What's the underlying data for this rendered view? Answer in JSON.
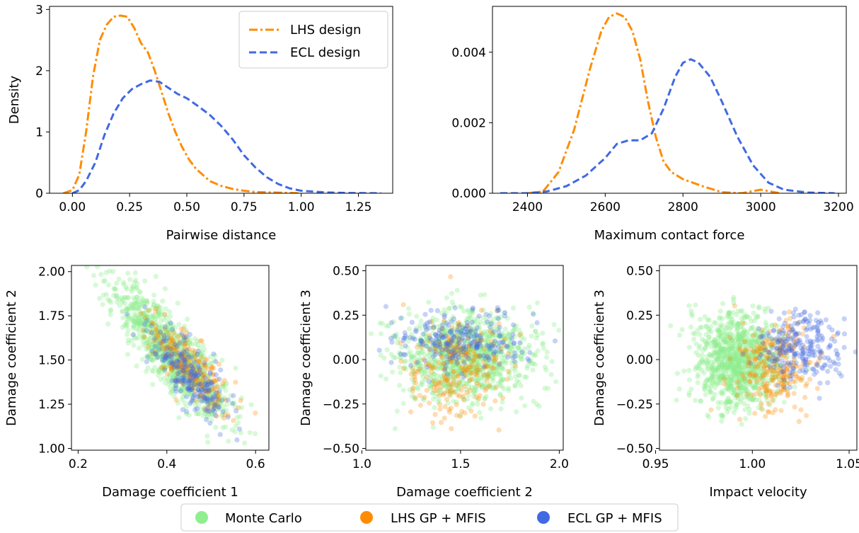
{
  "colors": {
    "lhs": "#ff8c00",
    "ecl": "#4169e1",
    "mc": "#90ee90"
  },
  "legend_bottom": {
    "items": [
      {
        "label": "Monte Carlo",
        "color": "#90ee90"
      },
      {
        "label": "LHS GP + MFIS",
        "color": "#ff8c00"
      },
      {
        "label": "ECL GP + MFIS",
        "color": "#4169e1"
      }
    ]
  },
  "chart_data": [
    {
      "type": "line",
      "title": "",
      "xlabel": "Pairwise distance",
      "ylabel": "Density",
      "xlim": [
        -0.1,
        1.4
      ],
      "ylim": [
        0,
        3.05
      ],
      "xticks": [
        0.0,
        0.25,
        0.5,
        0.75,
        1.0,
        1.25
      ],
      "xtick_labels": [
        "0.00",
        "0.25",
        "0.50",
        "0.75",
        "1.00",
        "1.25"
      ],
      "yticks": [
        0,
        1,
        2,
        3
      ],
      "ytick_labels": [
        "0",
        "1",
        "2",
        "3"
      ],
      "legend_position": "top-right",
      "series": [
        {
          "name": "LHS design",
          "style": "dashdot",
          "color": "#ff8c00",
          "x": [
            -0.04,
            0.0,
            0.03,
            0.06,
            0.09,
            0.12,
            0.15,
            0.18,
            0.21,
            0.24,
            0.27,
            0.3,
            0.33,
            0.36,
            0.39,
            0.42,
            0.45,
            0.48,
            0.51,
            0.54,
            0.57,
            0.6,
            0.65,
            0.7,
            0.75,
            0.8,
            0.9,
            1.0
          ],
          "y": [
            0.0,
            0.05,
            0.3,
            1.0,
            1.9,
            2.5,
            2.75,
            2.88,
            2.9,
            2.88,
            2.7,
            2.45,
            2.3,
            2.0,
            1.65,
            1.3,
            1.0,
            0.75,
            0.55,
            0.4,
            0.3,
            0.2,
            0.12,
            0.07,
            0.04,
            0.02,
            0.01,
            0.0
          ]
        },
        {
          "name": "ECL design",
          "style": "dashed",
          "color": "#4169e1",
          "x": [
            0.0,
            0.03,
            0.06,
            0.1,
            0.14,
            0.18,
            0.22,
            0.26,
            0.3,
            0.34,
            0.38,
            0.42,
            0.46,
            0.5,
            0.55,
            0.6,
            0.65,
            0.7,
            0.75,
            0.8,
            0.85,
            0.9,
            0.95,
            1.0,
            1.1,
            1.2,
            1.35
          ],
          "y": [
            0.0,
            0.05,
            0.2,
            0.5,
            0.95,
            1.3,
            1.55,
            1.7,
            1.78,
            1.84,
            1.82,
            1.72,
            1.62,
            1.55,
            1.42,
            1.28,
            1.1,
            0.88,
            0.62,
            0.42,
            0.26,
            0.15,
            0.08,
            0.04,
            0.015,
            0.005,
            0.0
          ]
        }
      ]
    },
    {
      "type": "line",
      "title": "",
      "xlabel": "Maximum contact force",
      "ylabel": "",
      "xlim": [
        2310,
        3220
      ],
      "ylim": [
        0,
        0.0053
      ],
      "xticks": [
        2400,
        2600,
        2800,
        3000,
        3200
      ],
      "xtick_labels": [
        "2400",
        "2600",
        "2800",
        "3000",
        "3200"
      ],
      "yticks": [
        0.0,
        0.002,
        0.004
      ],
      "ytick_labels": [
        "0.000",
        "0.002",
        "0.004"
      ],
      "series": [
        {
          "name": "LHS design",
          "style": "dashdot",
          "color": "#ff8c00",
          "x": [
            2400,
            2440,
            2480,
            2520,
            2560,
            2590,
            2610,
            2630,
            2650,
            2670,
            2690,
            2710,
            2730,
            2750,
            2770,
            2800,
            2850,
            2900,
            2950,
            3000,
            3050
          ],
          "y": [
            0.0,
            5e-05,
            0.0006,
            0.0018,
            0.0035,
            0.0046,
            0.005,
            0.0051,
            0.005,
            0.0046,
            0.0038,
            0.0026,
            0.0016,
            0.0009,
            0.0006,
            0.0004,
            0.0002,
            3e-05,
            0.0,
            0.0001,
            0.0
          ]
        },
        {
          "name": "ECL design",
          "style": "dashed",
          "color": "#4169e1",
          "x": [
            2330,
            2400,
            2450,
            2500,
            2550,
            2600,
            2630,
            2660,
            2690,
            2720,
            2750,
            2780,
            2800,
            2820,
            2840,
            2870,
            2900,
            2940,
            2980,
            3020,
            3060,
            3120,
            3190
          ],
          "y": [
            0.0,
            0.0,
            5e-05,
            0.0002,
            0.0005,
            0.001,
            0.0014,
            0.0015,
            0.0015,
            0.0017,
            0.0024,
            0.0033,
            0.0037,
            0.0038,
            0.0037,
            0.0033,
            0.0026,
            0.0016,
            0.0008,
            0.0003,
            0.0001,
            2e-05,
            0.0
          ]
        }
      ]
    },
    {
      "type": "scatter",
      "title": "",
      "xlabel": "Damage coefficient 1",
      "ylabel": "Damage coefficient 2",
      "xlim": [
        0.185,
        0.63
      ],
      "ylim": [
        0.99,
        2.035
      ],
      "xticks": [
        0.2,
        0.4,
        0.6
      ],
      "xtick_labels": [
        "0.2",
        "0.4",
        "0.6"
      ],
      "yticks": [
        1.0,
        1.25,
        1.5,
        1.75,
        2.0
      ],
      "ytick_labels": [
        "1.00",
        "1.25",
        "1.50",
        "1.75",
        "2.00"
      ],
      "series": [
        {
          "name": "Monte Carlo",
          "color": "#90ee90",
          "distribution": {
            "cx": 0.41,
            "cy": 1.54,
            "sx": 0.065,
            "sy": 0.19,
            "rho": -0.85,
            "count": 1000
          }
        },
        {
          "name": "LHS GP + MFIS",
          "color": "#ff8c00",
          "distribution": {
            "cx": 0.45,
            "cy": 1.46,
            "sx": 0.045,
            "sy": 0.13,
            "rho": -0.75,
            "count": 260
          }
        },
        {
          "name": "ECL GP + MFIS",
          "color": "#4169e1",
          "distribution": {
            "cx": 0.45,
            "cy": 1.41,
            "sx": 0.045,
            "sy": 0.13,
            "rho": -0.75,
            "count": 240
          }
        }
      ]
    },
    {
      "type": "scatter",
      "title": "",
      "xlabel": "Damage coefficient 2",
      "ylabel": "Damage coefficient 3",
      "xlim": [
        1.02,
        2.02
      ],
      "ylim": [
        -0.51,
        0.53
      ],
      "xticks": [
        1.0,
        1.5,
        2.0
      ],
      "xtick_labels": [
        "1.0",
        "1.5",
        "2.0"
      ],
      "yticks": [
        -0.5,
        -0.25,
        0.0,
        0.25,
        0.5
      ],
      "ytick_labels": [
        "−0.50",
        "−0.25",
        "0.00",
        "0.25",
        "0.50"
      ],
      "series": [
        {
          "name": "Monte Carlo",
          "color": "#90ee90",
          "distribution": {
            "cx": 1.52,
            "cy": 0.02,
            "sx": 0.18,
            "sy": 0.13,
            "rho": 0.0,
            "count": 1000
          }
        },
        {
          "name": "LHS GP + MFIS",
          "color": "#ff8c00",
          "distribution": {
            "cx": 1.48,
            "cy": -0.05,
            "sx": 0.13,
            "sy": 0.14,
            "rho": 0.0,
            "count": 260
          }
        },
        {
          "name": "ECL GP + MFIS",
          "color": "#4169e1",
          "distribution": {
            "cx": 1.48,
            "cy": 0.1,
            "sx": 0.17,
            "sy": 0.09,
            "rho": 0.0,
            "count": 240
          }
        }
      ]
    },
    {
      "type": "scatter",
      "title": "",
      "xlabel": "Impact velocity",
      "ylabel": "Damage coefficient 3",
      "xlim": [
        0.952,
        1.054
      ],
      "ylim": [
        -0.51,
        0.53
      ],
      "xticks": [
        0.95,
        1.0,
        1.05
      ],
      "xtick_labels": [
        "0.95",
        "1.00",
        "1.05"
      ],
      "yticks": [
        -0.5,
        -0.25,
        0.0,
        0.25,
        0.5
      ],
      "ytick_labels": [
        "−0.50",
        "−0.25",
        "0.00",
        "0.25",
        "0.50"
      ],
      "series": [
        {
          "name": "Monte Carlo",
          "color": "#90ee90",
          "distribution": {
            "cx": 0.992,
            "cy": 0.0,
            "sx": 0.011,
            "sy": 0.13,
            "rho": 0.0,
            "count": 1000
          }
        },
        {
          "name": "LHS GP + MFIS",
          "color": "#ff8c00",
          "distribution": {
            "cx": 1.012,
            "cy": -0.05,
            "sx": 0.01,
            "sy": 0.14,
            "rho": 0.0,
            "count": 260
          }
        },
        {
          "name": "ECL GP + MFIS",
          "color": "#4169e1",
          "distribution": {
            "cx": 1.025,
            "cy": 0.07,
            "sx": 0.01,
            "sy": 0.1,
            "rho": 0.0,
            "count": 240
          }
        }
      ]
    }
  ]
}
